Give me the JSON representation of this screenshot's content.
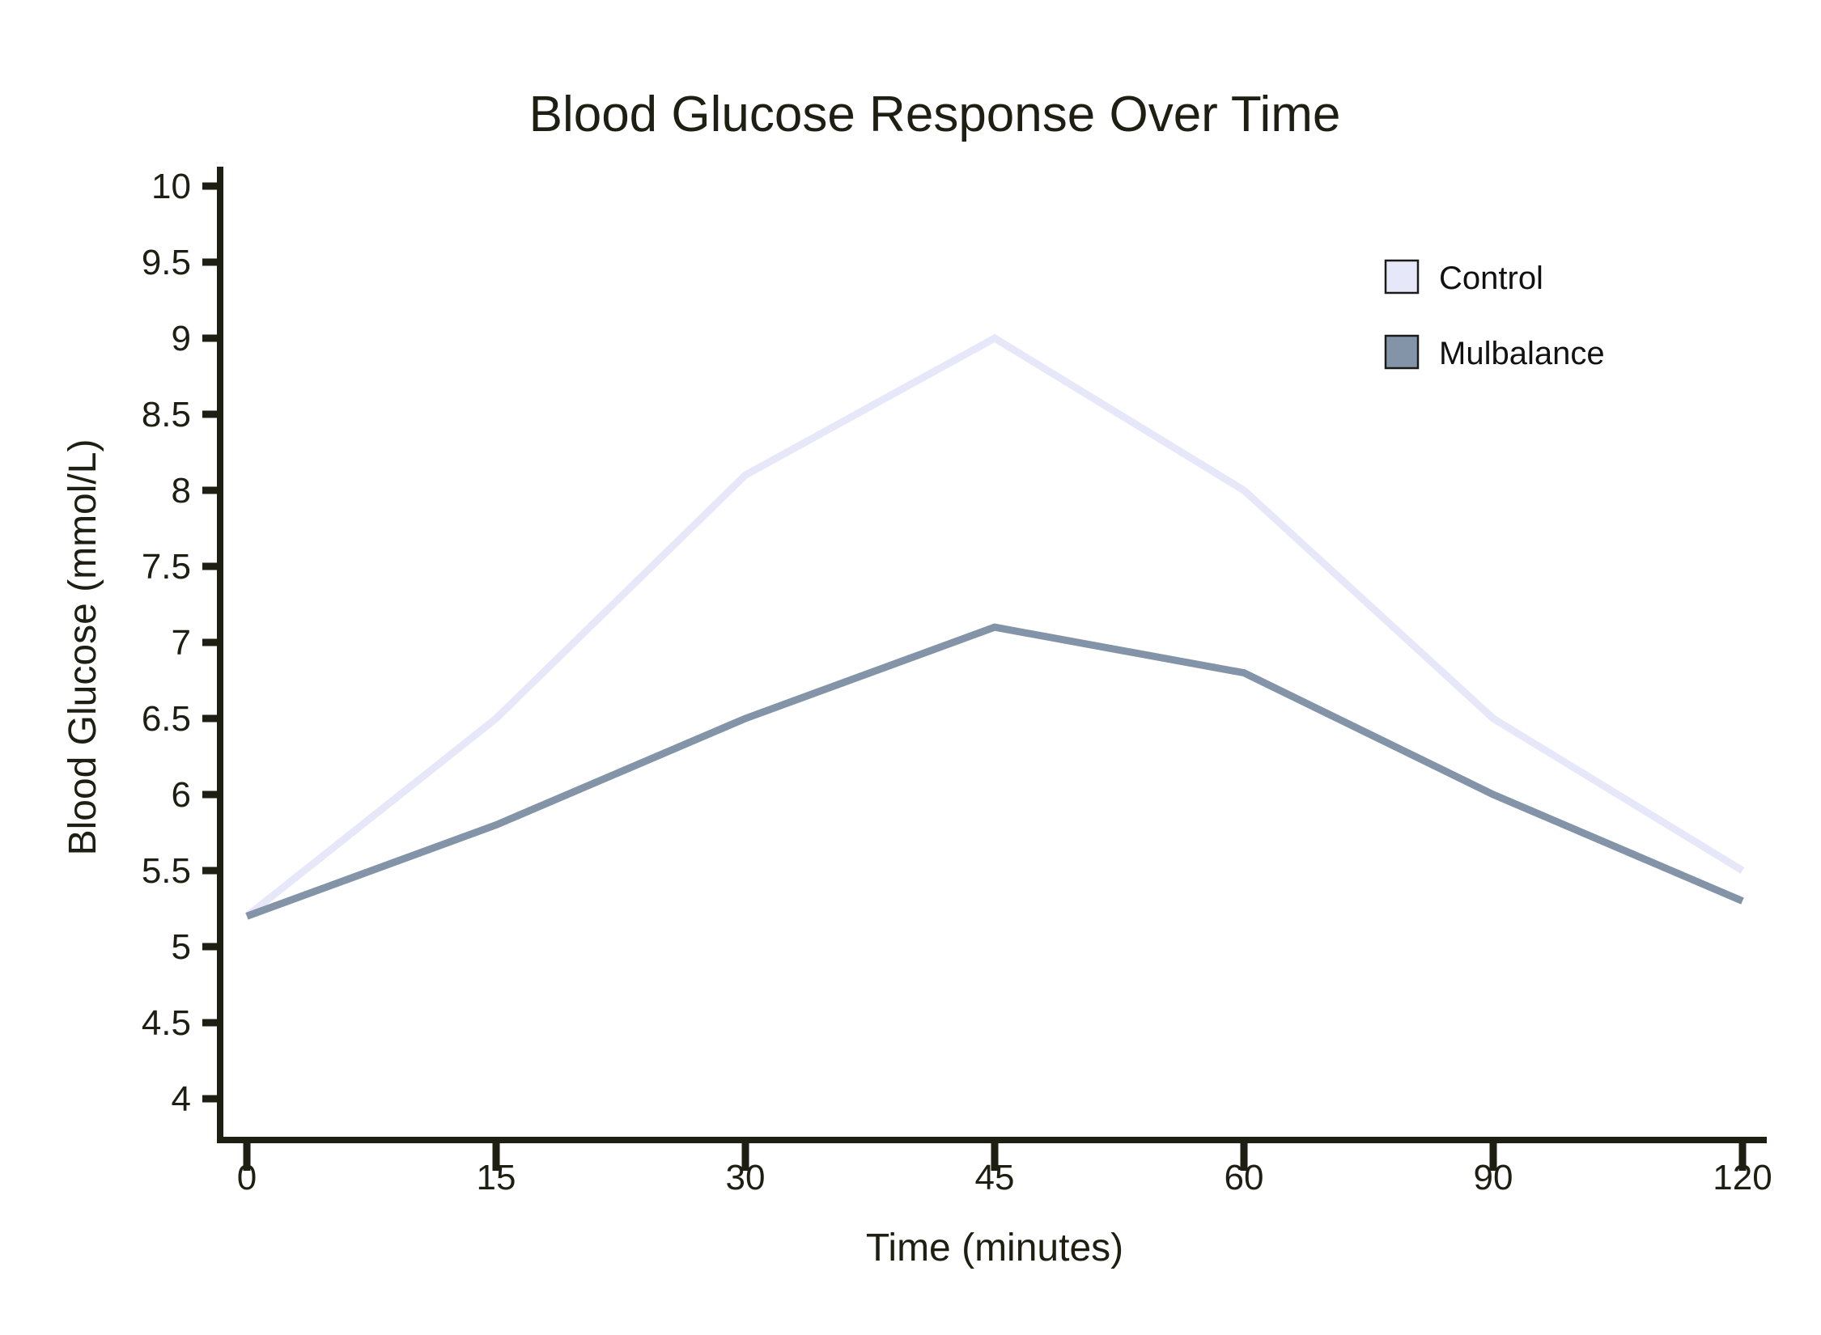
{
  "chart_data": {
    "type": "line",
    "title": "Blood Glucose Response Over Time",
    "xlabel": "Time (minutes)",
    "ylabel": "Blood Glucose (mmol/L)",
    "x_tick_labels": [
      "0",
      "15",
      "30",
      "45",
      "60",
      "90",
      "120"
    ],
    "x_values_minutes": [
      0,
      15,
      30,
      45,
      60,
      90,
      120
    ],
    "x_spacing": "categorical-even",
    "y_tick_labels": [
      "4",
      "4.5",
      "5",
      "5.5",
      "6",
      "6.5",
      "7",
      "7.5",
      "8",
      "8.5",
      "9",
      "9.5",
      "10"
    ],
    "ylim": [
      4,
      10
    ],
    "grid": false,
    "legend_position": "upper-right",
    "axis_color": "#1e1e13",
    "text_color": "#1e1e13",
    "background_color": "#ffffff",
    "series": [
      {
        "name": "Control",
        "color": "#e6e7f8",
        "swatch_border_color": "#1a1a1a",
        "values": [
          5.2,
          6.5,
          8.1,
          9.0,
          8.0,
          6.5,
          5.5
        ]
      },
      {
        "name": "Mulbalance",
        "color": "#8494a8",
        "swatch_border_color": "#1a1a1a",
        "values": [
          5.2,
          5.8,
          6.5,
          7.1,
          6.8,
          6.0,
          5.3
        ]
      }
    ]
  }
}
